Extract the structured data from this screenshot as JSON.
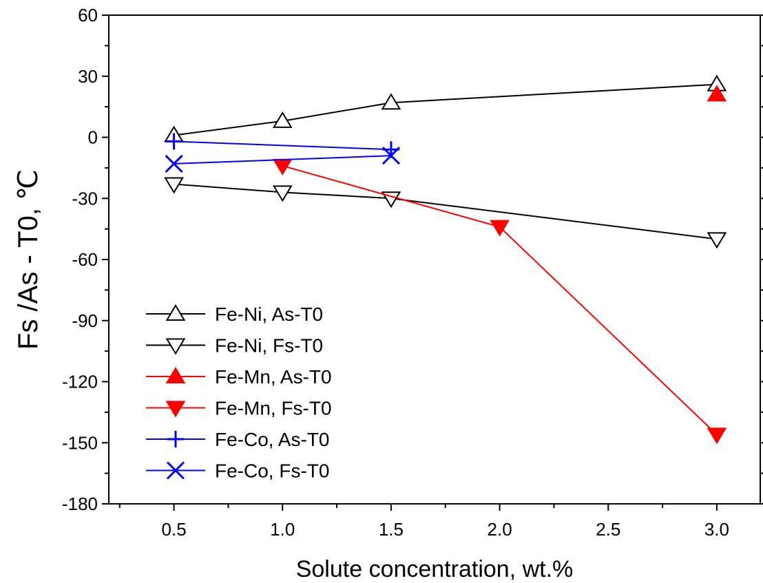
{
  "chart_data": {
    "type": "line",
    "xlabel": "Solute concentration, wt.%",
    "ylabel": "Fs /As - T0, ℃",
    "xlim": [
      0.2,
      3.2
    ],
    "ylim": [
      -180,
      60
    ],
    "xticks": [
      0.5,
      1.0,
      1.5,
      2.0,
      2.5,
      3.0
    ],
    "xtick_labels": [
      "0.5",
      "1.0",
      "1.5",
      "2.0",
      "2.5",
      "3.0"
    ],
    "yticks": [
      -180,
      -150,
      -120,
      -90,
      -60,
      -30,
      0,
      30,
      60
    ],
    "ytick_labels": [
      "-180",
      "-150",
      "-120",
      "-90",
      "-60",
      "-30",
      "0",
      "30",
      "60"
    ],
    "grid": false,
    "legend_position": "lower-left",
    "series": [
      {
        "name": "Fe-Ni, As-T0",
        "color": "#000000",
        "marker": "triangle-up-open",
        "x": [
          0.5,
          1.0,
          1.5,
          3.0
        ],
        "y": [
          1,
          8,
          17,
          26
        ]
      },
      {
        "name": "Fe-Ni, Fs-T0",
        "color": "#000000",
        "marker": "triangle-down-open",
        "x": [
          0.5,
          1.0,
          1.5,
          3.0
        ],
        "y": [
          -23,
          -27,
          -30,
          -50
        ]
      },
      {
        "name": "Fe-Mn, As-T0",
        "color": "#ff0000",
        "marker": "triangle-up-filled",
        "x": [
          3.0
        ],
        "y": [
          21
        ]
      },
      {
        "name": "Fe-Mn, Fs-T0",
        "color": "#ff0000",
        "marker": "triangle-down-filled",
        "x": [
          1.0,
          2.0,
          3.0
        ],
        "y": [
          -14,
          -44,
          -146
        ]
      },
      {
        "name": "Fe-Co, As-T0",
        "color": "#0000ff",
        "marker": "plus",
        "x": [
          0.5,
          1.5
        ],
        "y": [
          -2,
          -6
        ]
      },
      {
        "name": "Fe-Co, Fs-T0",
        "color": "#0000ff",
        "marker": "x",
        "x": [
          0.5,
          1.5
        ],
        "y": [
          -13,
          -9
        ]
      }
    ]
  }
}
